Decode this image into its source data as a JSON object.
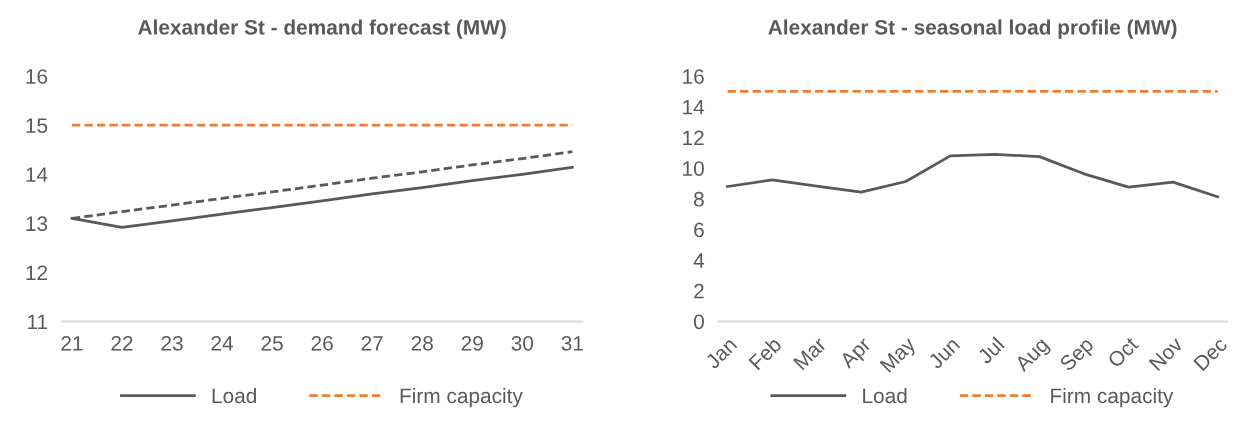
{
  "chart_data": [
    {
      "type": "line",
      "title": "Alexander St - demand forecast (MW)",
      "categories": [
        "21",
        "22",
        "23",
        "24",
        "25",
        "26",
        "27",
        "28",
        "29",
        "30",
        "31"
      ],
      "ylim": [
        11,
        16
      ],
      "yticks": [
        11,
        12,
        13,
        14,
        15,
        16
      ],
      "grid": false,
      "legend": "bottom",
      "marker": "none",
      "series": [
        {
          "name": "Load",
          "color": "#595959",
          "line_style": "solid",
          "values": [
            13.1,
            12.92,
            13.05,
            13.19,
            13.32,
            13.46,
            13.6,
            13.73,
            13.87,
            14.0,
            14.14
          ]
        },
        {
          "name": "Firm capacity",
          "color": "#ed7d31",
          "line_style": "dashed",
          "values": [
            15,
            15,
            15,
            15,
            15,
            15,
            15,
            15,
            15,
            15,
            15
          ]
        },
        {
          "color": "#595959",
          "line_style": "dashed",
          "values": [
            13.1,
            13.24,
            13.37,
            13.51,
            13.64,
            13.78,
            13.92,
            14.05,
            14.19,
            14.32,
            14.46
          ]
        }
      ]
    },
    {
      "type": "line",
      "title": "Alexander St - seasonal load profile (MW)",
      "categories": [
        "Jan",
        "Feb",
        "Mar",
        "Apr",
        "May",
        "Jun",
        "Jul",
        "Aug",
        "Sep",
        "Oct",
        "Nov",
        "Dec"
      ],
      "ylim": [
        0,
        16
      ],
      "yticks": [
        0,
        2,
        4,
        6,
        8,
        10,
        12,
        14,
        16
      ],
      "grid": false,
      "legend": "bottom",
      "marker": "none",
      "series": [
        {
          "name": "Load",
          "color": "#595959",
          "line_style": "solid",
          "values": [
            8.8,
            9.23,
            8.83,
            8.43,
            9.13,
            10.8,
            10.9,
            10.75,
            9.63,
            8.76,
            9.09,
            8.13
          ]
        },
        {
          "name": "Firm capacity",
          "color": "#ed7d31",
          "line_style": "dashed",
          "values": [
            15,
            15,
            15,
            15,
            15,
            15,
            15,
            15,
            15,
            15,
            15,
            15
          ]
        }
      ]
    }
  ]
}
